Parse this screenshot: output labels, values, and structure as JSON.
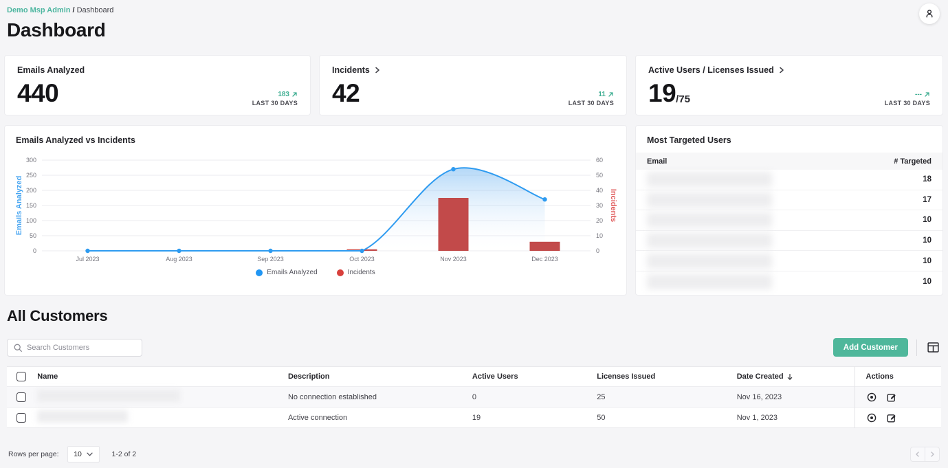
{
  "breadcrumb": {
    "root": "Demo Msp Admin",
    "separator": "/",
    "current": "Dashboard"
  },
  "page_title": "Dashboard",
  "stat_cards": [
    {
      "title": "Emails Analyzed",
      "value": "440",
      "delta": "183",
      "period": "LAST 30 DAYS"
    },
    {
      "title": "Incidents",
      "value": "42",
      "delta": "11",
      "period": "LAST 30 DAYS"
    },
    {
      "title": "Active Users / Licenses Issued",
      "value": "19",
      "value_suffix": "/75",
      "delta": "---",
      "period": "LAST 30 DAYS"
    }
  ],
  "chart_data": {
    "type": "line+bar",
    "title": "Emails Analyzed vs Incidents",
    "categories": [
      "Jul 2023",
      "Aug 2023",
      "Sep 2023",
      "Oct 2023",
      "Nov 2023",
      "Dec 2023"
    ],
    "series": [
      {
        "name": "Emails Analyzed",
        "type": "area-line",
        "axis": "left",
        "color": "#2e9bf0",
        "legend_color": "#2196f3",
        "values": [
          0,
          0,
          0,
          0,
          270,
          170
        ]
      },
      {
        "name": "Incidents",
        "type": "bar",
        "axis": "right",
        "color": "#c24a4a",
        "legend_color": "#d8403c",
        "values": [
          0,
          0,
          0,
          1,
          35,
          6
        ]
      }
    ],
    "left_axis": {
      "label": "Emails Analyzed",
      "color": "#49a6f1",
      "min": 0,
      "max": 300,
      "ticks": [
        0,
        50,
        100,
        150,
        200,
        250,
        300
      ]
    },
    "right_axis": {
      "label": "Incidents",
      "color": "#e05a5a",
      "min": 0,
      "max": 60,
      "ticks": [
        0,
        10,
        20,
        30,
        40,
        50,
        60
      ]
    },
    "grid": true,
    "legend_position": "bottom"
  },
  "most_targeted": {
    "title": "Most Targeted Users",
    "columns": {
      "email": "Email",
      "targeted": "# Targeted"
    },
    "rows": [
      {
        "targeted": 18
      },
      {
        "targeted": 17
      },
      {
        "targeted": 10
      },
      {
        "targeted": 10
      },
      {
        "targeted": 10
      },
      {
        "targeted": 10
      }
    ]
  },
  "customers": {
    "section_title": "All Customers",
    "search_placeholder": "Search Customers",
    "add_button": "Add Customer",
    "columns": {
      "name": "Name",
      "description": "Description",
      "active_users": "Active Users",
      "licenses_issued": "Licenses Issued",
      "date_created": "Date Created",
      "actions": "Actions"
    },
    "sorted_by": "Date Created",
    "rows": [
      {
        "description": "No connection established",
        "active_users": "0",
        "licenses_issued": "25",
        "date_created": "Nov 16, 2023"
      },
      {
        "description": "Active connection",
        "active_users": "19",
        "licenses_issued": "50",
        "date_created": "Nov 1, 2023"
      }
    ],
    "footer": {
      "rows_per_page_label": "Rows per page:",
      "rows_per_page_value": "10",
      "range_label": "1-2 of 2"
    }
  },
  "colors": {
    "accent_teal": "#4fb79b",
    "breadcrumb_teal": "#4db6a0",
    "delta_green": "#3fae92",
    "line_blue": "#2e9bf0",
    "bar_red": "#c24a4a",
    "page_background": "#f5f5f7"
  }
}
